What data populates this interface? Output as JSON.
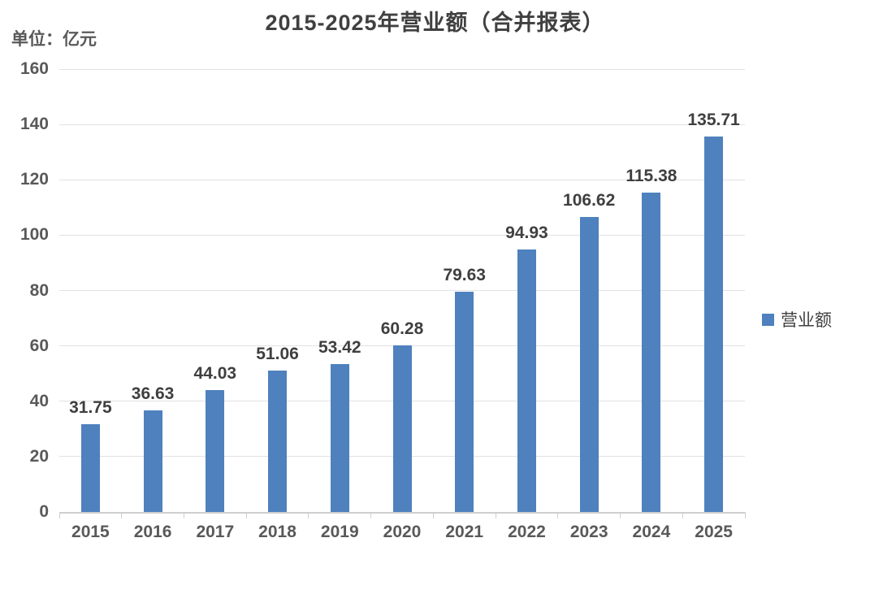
{
  "chart_data": {
    "type": "bar",
    "title": "2015-2025年营业额（合并报表）",
    "unit_label": "单位：亿元",
    "categories": [
      "2015",
      "2016",
      "2017",
      "2018",
      "2019",
      "2020",
      "2021",
      "2022",
      "2023",
      "2024",
      "2025"
    ],
    "series": [
      {
        "name": "营业额",
        "values": [
          31.75,
          36.63,
          44.03,
          51.06,
          53.42,
          60.28,
          79.63,
          94.93,
          106.62,
          115.38,
          135.71
        ]
      }
    ],
    "data_labels": true,
    "xlabel": "",
    "ylabel": "",
    "ylim": [
      0,
      160
    ],
    "yticks": [
      0,
      20,
      40,
      60,
      80,
      100,
      120,
      140,
      160
    ],
    "grid": "horizontal",
    "legend_position": "right",
    "colors": {
      "bar": "#4E81BD",
      "gridline": "#E2E2E2",
      "axis_line": "#CFCFCF",
      "tick_label": "#595959",
      "data_label": "#3F3F3F",
      "title": "#404040"
    }
  }
}
